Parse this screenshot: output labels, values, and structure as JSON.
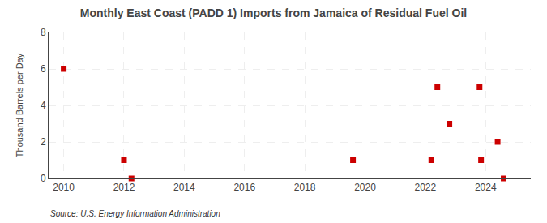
{
  "chart_data": {
    "type": "scatter",
    "title": "Monthly East Coast (PADD 1) Imports from Jamaica of Residual Fuel Oil",
    "ylabel": "Thousand Barrels per Day",
    "annotations": [
      "Source: U.S. Energy Information Administration"
    ],
    "x": [
      2010.0,
      2012.0,
      2012.25,
      2019.6,
      2022.4,
      2022.2,
      2022.8,
      2023.8,
      2023.85,
      2024.4,
      2024.6
    ],
    "values": [
      6,
      1,
      0,
      1,
      5,
      1,
      3,
      5,
      1,
      2,
      0
    ],
    "color": "#cc0000",
    "marker": "square",
    "xlim": [
      2009.5,
      2025.5
    ],
    "xticks": [
      2010,
      2012,
      2014,
      2016,
      2018,
      2020,
      2022,
      2024
    ],
    "ylim": [
      0,
      8
    ],
    "yticks": [
      0,
      2,
      4,
      6,
      8
    ],
    "grid": true
  }
}
